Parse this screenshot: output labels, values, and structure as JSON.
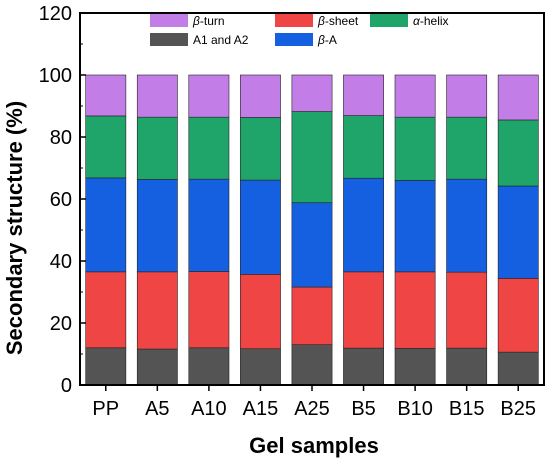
{
  "chart_data": {
    "type": "bar",
    "stacked": true,
    "xlabel": "Gel samples",
    "ylabel": "Secondary structure (%)",
    "ylim": [
      0,
      120
    ],
    "yticks": [
      0,
      20,
      40,
      60,
      80,
      100,
      120
    ],
    "categories": [
      "PP",
      "A5",
      "A10",
      "A15",
      "A25",
      "B5",
      "B10",
      "B15",
      "B25"
    ],
    "series": [
      {
        "name": "A1 and A2",
        "color": "#545454",
        "values": [
          12.0,
          11.6,
          12.0,
          11.7,
          13.0,
          11.9,
          11.8,
          11.9,
          10.6
        ]
      },
      {
        "name": "β-sheet",
        "color": "#f04545",
        "values": [
          24.5,
          24.9,
          24.6,
          24.0,
          18.6,
          24.6,
          24.7,
          24.5,
          23.8
        ]
      },
      {
        "name": "β-A",
        "color": "#1560e0",
        "values": [
          30.3,
          29.8,
          29.8,
          30.4,
          27.2,
          30.2,
          29.5,
          30.0,
          29.8
        ]
      },
      {
        "name": "α-helix",
        "color": "#1fa46a",
        "values": [
          20.0,
          20.1,
          20.0,
          20.2,
          29.4,
          20.2,
          20.4,
          20.0,
          21.3
        ]
      },
      {
        "name": "β-turn",
        "color": "#c27ee6",
        "values": [
          13.2,
          13.6,
          13.6,
          13.7,
          11.8,
          13.1,
          13.6,
          13.6,
          14.5
        ]
      }
    ],
    "legend": {
      "placement": "top-center",
      "rows": [
        [
          "β-turn",
          "β-sheet",
          "α-helix"
        ],
        [
          "A1 and A2",
          "β-A"
        ]
      ]
    },
    "grid": false
  }
}
